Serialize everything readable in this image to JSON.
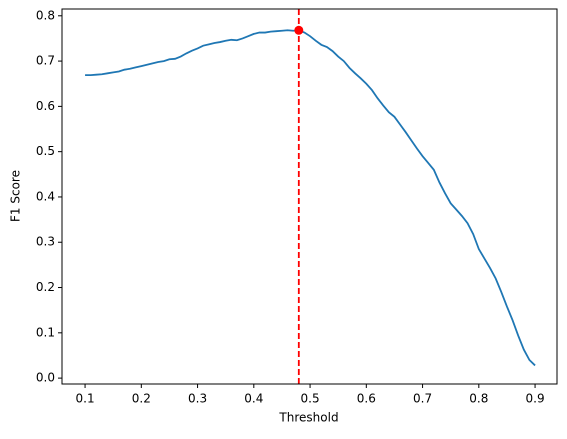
{
  "chart_data": {
    "type": "line",
    "xlabel": "Threshold",
    "ylabel": "F1 Score",
    "x": [
      0.1,
      0.11,
      0.12,
      0.13,
      0.14,
      0.15,
      0.16,
      0.17,
      0.18,
      0.19,
      0.2,
      0.21,
      0.22,
      0.23,
      0.24,
      0.25,
      0.26,
      0.27,
      0.28,
      0.29,
      0.3,
      0.31,
      0.32,
      0.33,
      0.34,
      0.35,
      0.36,
      0.37,
      0.38,
      0.39,
      0.4,
      0.41,
      0.42,
      0.43,
      0.44,
      0.45,
      0.46,
      0.47,
      0.48,
      0.49,
      0.5,
      0.51,
      0.52,
      0.53,
      0.54,
      0.55,
      0.56,
      0.57,
      0.58,
      0.59,
      0.6,
      0.61,
      0.62,
      0.63,
      0.64,
      0.65,
      0.66,
      0.67,
      0.68,
      0.69,
      0.7,
      0.71,
      0.72,
      0.73,
      0.74,
      0.75,
      0.76,
      0.77,
      0.78,
      0.79,
      0.8,
      0.81,
      0.82,
      0.83,
      0.84,
      0.85,
      0.86,
      0.87,
      0.88,
      0.89,
      0.9
    ],
    "series": [
      {
        "color": "#1f77b4",
        "values": [
          0.669,
          0.669,
          0.67,
          0.671,
          0.673,
          0.675,
          0.677,
          0.681,
          0.683,
          0.686,
          0.689,
          0.692,
          0.695,
          0.698,
          0.7,
          0.704,
          0.705,
          0.71,
          0.717,
          0.723,
          0.728,
          0.734,
          0.737,
          0.74,
          0.742,
          0.745,
          0.747,
          0.746,
          0.75,
          0.755,
          0.76,
          0.763,
          0.763,
          0.765,
          0.766,
          0.767,
          0.768,
          0.767,
          0.768,
          0.763,
          0.755,
          0.745,
          0.736,
          0.731,
          0.722,
          0.71,
          0.7,
          0.685,
          0.673,
          0.662,
          0.65,
          0.636,
          0.618,
          0.602,
          0.587,
          0.577,
          0.56,
          0.543,
          0.525,
          0.507,
          0.49,
          0.475,
          0.46,
          0.432,
          0.408,
          0.386,
          0.372,
          0.358,
          0.342,
          0.318,
          0.285,
          0.264,
          0.243,
          0.22,
          0.19,
          0.158,
          0.128,
          0.094,
          0.063,
          0.04,
          0.028
        ]
      }
    ],
    "best_point": {
      "x": 0.48,
      "y": 0.768,
      "color": "#ff0000"
    },
    "xlim": [
      0.059,
      0.939
    ],
    "ylim": [
      -0.013,
      0.815
    ],
    "xticks": [
      0.1,
      0.2,
      0.3,
      0.4,
      0.5,
      0.6,
      0.7,
      0.8,
      0.9
    ],
    "yticks": [
      {
        "value": 0,
        "label": "0.0"
      },
      0.1,
      0.2,
      0.3,
      0.4,
      0.5,
      0.6,
      0.7,
      0.8
    ]
  }
}
